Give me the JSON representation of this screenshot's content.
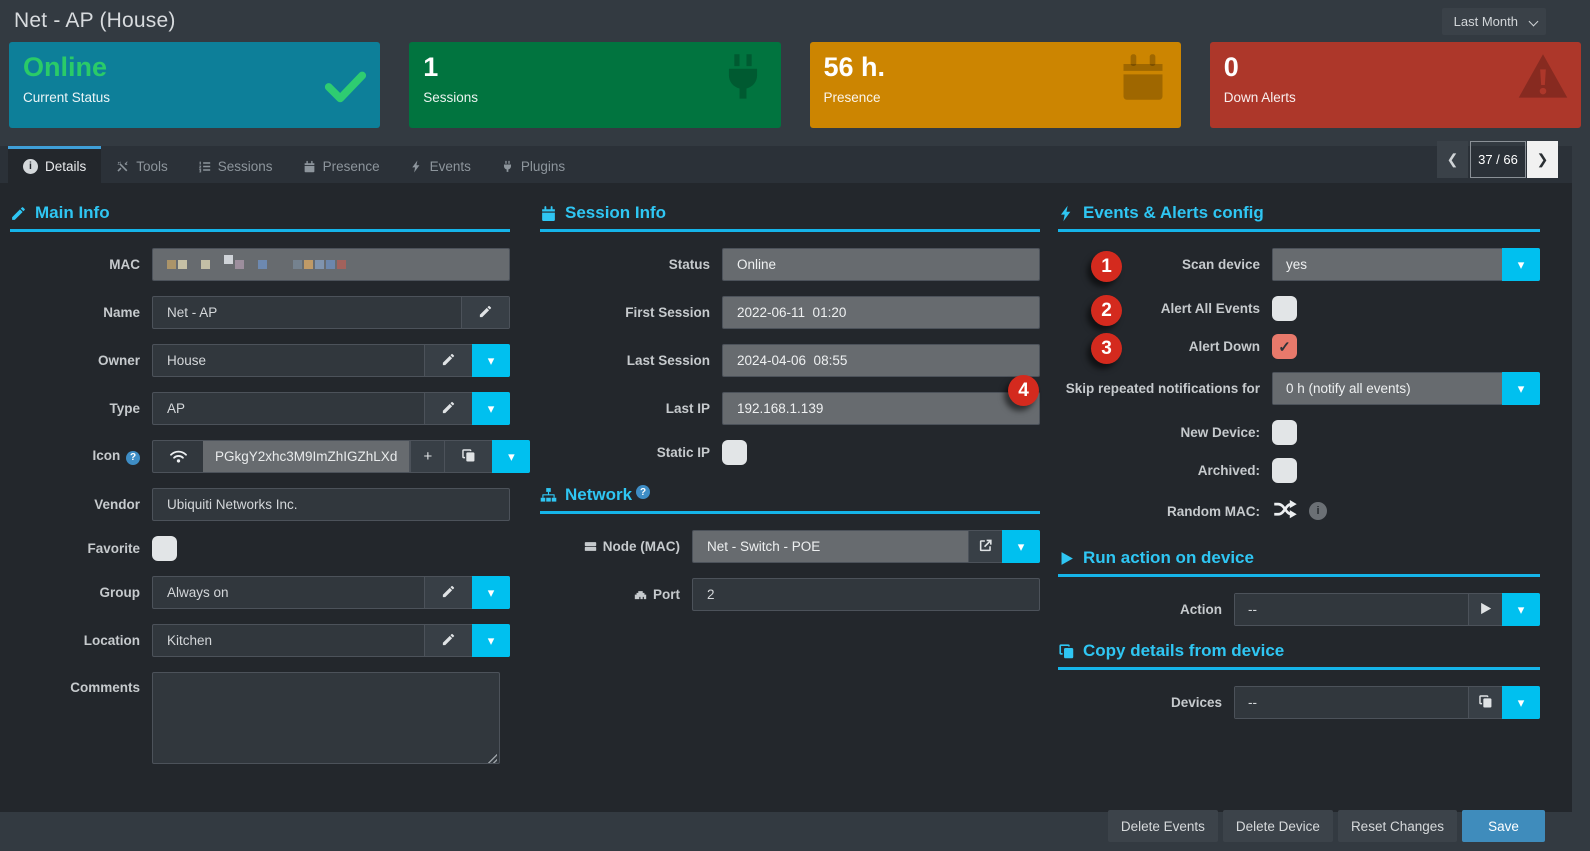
{
  "page": {
    "title": "Net - AP (House)"
  },
  "toolbar": {
    "period": "Last Month"
  },
  "cards": [
    {
      "value": "Online",
      "label": "Current Status"
    },
    {
      "value": "1",
      "label": "Sessions"
    },
    {
      "value": "56 h.",
      "label": "Presence"
    },
    {
      "value": "0",
      "label": "Down Alerts"
    }
  ],
  "tabs": {
    "details": "Details",
    "tools": "Tools",
    "sessions": "Sessions",
    "presence": "Presence",
    "events": "Events",
    "plugins": "Plugins"
  },
  "pagination": {
    "display": "37 / 66"
  },
  "sections": {
    "main_info": "Main Info",
    "session_info": "Session Info",
    "network": "Network",
    "events_alerts": "Events & Alerts config",
    "run_action": "Run action on device",
    "copy_details": "Copy details from device"
  },
  "main_info": {
    "mac_label": "MAC",
    "mac_redacted": true,
    "mac_blocks": [
      "#ab9469",
      "#c6c0a5",
      "gap",
      "#c3bfa6",
      "gap",
      "up#cfd3d8",
      "#9c8e9d",
      "gap",
      "#6d89b0",
      "gap",
      "gap",
      "#75828f",
      "#bf9a67",
      "#8094ae",
      "#6d87ac",
      "#a2625c"
    ],
    "name_label": "Name",
    "name_value": "Net - AP",
    "owner_label": "Owner",
    "owner_value": "House",
    "type_label": "Type",
    "type_value": "AP",
    "icon_label": "Icon",
    "icon_value": "PGkgY2xhc3M9ImZhIGZhLXd",
    "vendor_label": "Vendor",
    "vendor_value": "Ubiquiti Networks Inc.",
    "favorite_label": "Favorite",
    "group_label": "Group",
    "group_value": "Always on",
    "location_label": "Location",
    "location_value": "Kitchen",
    "comments_label": "Comments",
    "comments_value": ""
  },
  "session_info": {
    "status_label": "Status",
    "status_value": "Online",
    "first_session_label": "First Session",
    "first_session_value": "2022-06-11  01:20",
    "last_session_label": "Last Session",
    "last_session_value": "2024-04-06  08:55",
    "last_ip_label": "Last IP",
    "last_ip_value": "192.168.1.139",
    "static_ip_label": "Static IP"
  },
  "network": {
    "node_label": "Node (MAC)",
    "node_value": "Net - Switch - POE",
    "port_label": "Port",
    "port_value": "2"
  },
  "events_alerts": {
    "scan_label": "Scan device",
    "scan_value": "yes",
    "alert_all_label": "Alert All Events",
    "alert_down_label": "Alert Down",
    "skip_label": "Skip repeated notifications for",
    "skip_value": "0 h (notify all events)",
    "new_device_label": "New Device:",
    "archived_label": "Archived:",
    "random_mac_label": "Random MAC:"
  },
  "run_action": {
    "action_label": "Action",
    "action_value": "--"
  },
  "copy_details": {
    "devices_label": "Devices",
    "devices_value": "--"
  },
  "footer": {
    "delete_events": "Delete Events",
    "delete_device": "Delete Device",
    "reset_changes": "Reset Changes",
    "save": "Save"
  },
  "annotations": {
    "n1": "1",
    "n2": "2",
    "n3": "3",
    "n4": "4"
  },
  "checkbox_states": {
    "favorite": false,
    "static_ip": false,
    "alert_all": false,
    "alert_down": true,
    "new_device": false,
    "archived": false
  },
  "icons": {
    "caret_down": "▾",
    "check": "✓",
    "plus": "+",
    "play": "▶",
    "info": "i",
    "question": "?",
    "chevron_left": "❮",
    "chevron_right": "❯"
  },
  "colors": {
    "accent": "#00c0ef",
    "header_cyan": "#2fc6f3",
    "card_online_bg": "#0d7f99",
    "card_online_value": "#2acb68",
    "card_sessions_bg": "#01743f",
    "card_presence_bg": "#cc8501",
    "card_alerts_bg": "#ad372a",
    "checkbox_checked": "#e8796b",
    "save_button": "#3f8cbc",
    "active_tab_border": "#3f9fd8",
    "annotation_badge": "#d42a1e"
  }
}
